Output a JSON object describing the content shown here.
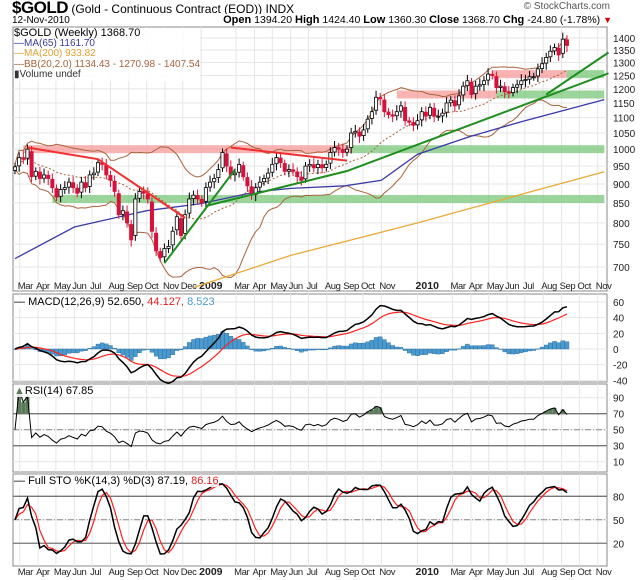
{
  "header": {
    "symbol": "$GOLD",
    "description": "(Gold - Continuous Contract (EOD))",
    "exchange": "INDX",
    "date": "12-Nov-2010",
    "brand": "© StockCharts.com",
    "open_label": "Open",
    "open": "1394.20",
    "high_label": "High",
    "high": "1424.40",
    "low_label": "Low",
    "low": "1360.30",
    "close_label": "Close",
    "close": "1368.70",
    "chg_label": "Chg",
    "chg": "-24.80 (-1.78%)"
  },
  "legend": {
    "price": "$GOLD (Weekly) 1368.70",
    "ma65": "MA(65) 1161.70",
    "ma200": "MA(200) 933.82",
    "bb": "BB(20,2.0) 1134.43 - 1270.98 - 1407.54",
    "volume": "Volume undef",
    "macd": "MACD(12,26,9) 52.650,",
    "macd_signal": "44.127,",
    "macd_hist": "8.523",
    "rsi": "RSI(14) 67.85",
    "sto": "Full STO %K(14,3) %D(3) 87.19,",
    "sto_d": "86.16"
  },
  "chart_data": {
    "type": "candlestick",
    "period": "weekly",
    "price_scale": "log",
    "grid": true,
    "colors": {
      "up": "#000000",
      "down": "#d8103a",
      "ma65": "#3a3aa8",
      "ma200": "#e8aa38",
      "bb": "#a8643c",
      "resistance": "#f03030",
      "support": "#1f8f1f",
      "macd": "#000000",
      "signal": "#ff2020",
      "histogram": "#4a9ad0",
      "rsi_fill": "#5a7a5a"
    },
    "closes": [
      948,
      975,
      970,
      1000,
      920,
      935,
      915,
      925,
      915,
      890,
      865,
      885,
      890,
      905,
      890,
      875,
      905,
      890,
      925,
      930,
      960,
      955,
      925,
      910,
      880,
      820,
      830,
      800,
      760,
      860,
      880,
      875,
      860,
      780,
      735,
      720,
      740,
      745,
      780,
      815,
      770,
      820,
      860,
      870,
      860,
      850,
      890,
      905,
      915,
      940,
      990,
      950,
      925,
      930,
      955,
      920,
      895,
      870,
      890,
      905,
      915,
      930,
      955,
      975,
      960,
      935,
      940,
      935,
      920,
      910,
      950,
      955,
      945,
      955,
      945,
      955,
      990,
      1005,
      1000,
      990,
      1000,
      1050,
      1055,
      1040,
      1060,
      1095,
      1120,
      1170,
      1165,
      1120,
      1110,
      1105,
      1120,
      1140,
      1090,
      1085,
      1075,
      1090,
      1120,
      1105,
      1135,
      1105,
      1105,
      1115,
      1150,
      1160,
      1140,
      1175,
      1210,
      1230,
      1180,
      1210,
      1215,
      1230,
      1255,
      1250,
      1205,
      1210,
      1190,
      1185,
      1205,
      1215,
      1230,
      1235,
      1245,
      1245,
      1275,
      1295,
      1320,
      1345,
      1360,
      1330,
      1395,
      1368.7
    ],
    "ma65": [
      [
        "2008-02-22",
        718
      ],
      [
        "2008-06-01",
        790
      ],
      [
        "2008-10-01",
        830
      ],
      [
        "2009-01-01",
        848
      ],
      [
        "2009-04-01",
        878
      ],
      [
        "2009-06-01",
        888
      ],
      [
        "2009-09-01",
        895
      ],
      [
        "2009-11-01",
        910
      ],
      [
        "2010-01-01",
        985
      ],
      [
        "2010-04-01",
        1040
      ],
      [
        "2010-07-01",
        1090
      ],
      [
        "2010-11-12",
        1161.7
      ]
    ],
    "ma200": [
      [
        "2008-12-20",
        658
      ],
      [
        "2009-06-01",
        725
      ],
      [
        "2010-01-01",
        800
      ],
      [
        "2010-06-01",
        862
      ],
      [
        "2010-11-12",
        933.82
      ]
    ],
    "price_ticks": [
      700,
      750,
      800,
      850,
      900,
      950,
      1000,
      1050,
      1100,
      1150,
      1200,
      1250,
      1300,
      1350,
      1400
    ],
    "x_ticks": [
      {
        "label": "Mar",
        "date": "2008-03-01"
      },
      {
        "label": "Apr",
        "date": "2008-04-01"
      },
      {
        "label": "May",
        "date": "2008-05-01"
      },
      {
        "label": "Jun",
        "date": "2008-06-01"
      },
      {
        "label": "Jul",
        "date": "2008-07-01"
      },
      {
        "label": "Aug",
        "date": "2008-08-01"
      },
      {
        "label": "Sep",
        "date": "2008-09-01"
      },
      {
        "label": "Oct",
        "date": "2008-10-01"
      },
      {
        "label": "Nov",
        "date": "2008-11-01"
      },
      {
        "label": "Dec",
        "date": "2008-12-01"
      },
      {
        "label": "2009",
        "date": "2009-01-01",
        "bold": true
      },
      {
        "label": "Mar",
        "date": "2009-03-01"
      },
      {
        "label": "Apr",
        "date": "2009-04-01"
      },
      {
        "label": "May",
        "date": "2009-05-01"
      },
      {
        "label": "Jun",
        "date": "2009-06-01"
      },
      {
        "label": "Jul",
        "date": "2009-07-01"
      },
      {
        "label": "Aug",
        "date": "2009-08-01"
      },
      {
        "label": "Sep",
        "date": "2009-09-01"
      },
      {
        "label": "Oct",
        "date": "2009-10-01"
      },
      {
        "label": "Nov",
        "date": "2009-11-01"
      },
      {
        "label": "2010",
        "date": "2010-01-01",
        "bold": true
      },
      {
        "label": "Mar",
        "date": "2010-03-01"
      },
      {
        "label": "Apr",
        "date": "2010-04-01"
      },
      {
        "label": "May",
        "date": "2010-05-01"
      },
      {
        "label": "Jun",
        "date": "2010-06-01"
      },
      {
        "label": "Jul",
        "date": "2010-07-01"
      },
      {
        "label": "Aug",
        "date": "2010-08-01"
      },
      {
        "label": "Sep",
        "date": "2010-09-01"
      },
      {
        "label": "Oct",
        "date": "2010-10-01"
      },
      {
        "label": "Nov",
        "date": "2010-11-01"
      }
    ],
    "bands": [
      {
        "kind": "resistance",
        "price": 1000,
        "from": "2008-03-07",
        "to": "2009-09-11"
      },
      {
        "kind": "support",
        "price": 1000,
        "from": "2009-09-11",
        "to": "2010-11-12"
      },
      {
        "kind": "support",
        "price": 860,
        "from": "2008-04-25",
        "to": "2010-11-12"
      },
      {
        "kind": "resistance",
        "price": 1180,
        "from": "2009-11-27",
        "to": "2010-05-14"
      },
      {
        "kind": "support",
        "price": 1180,
        "from": "2010-05-14",
        "to": "2010-11-12"
      },
      {
        "kind": "resistance",
        "price": 1255,
        "from": "2010-05-07",
        "to": "2010-09-10"
      },
      {
        "kind": "support",
        "price": 1255,
        "from": "2010-09-10",
        "to": "2010-11-12"
      }
    ],
    "trendlines": [
      {
        "kind": "resistance",
        "points": [
          [
            "2008-03-14",
            1005
          ],
          [
            "2008-07-11",
            970
          ],
          [
            "2008-12-05",
            812
          ]
        ]
      },
      {
        "kind": "resistance",
        "points": [
          [
            "2009-02-20",
            1005
          ],
          [
            "2009-09-04",
            966
          ]
        ]
      },
      {
        "kind": "support",
        "points": [
          [
            "2008-10-31",
            708
          ],
          [
            "2009-02-27",
            940
          ]
        ]
      },
      {
        "kind": "support",
        "points": [
          [
            "2009-01-09",
            842
          ],
          [
            "2009-09-04",
            936
          ],
          [
            "2010-11-19",
            1258
          ]
        ]
      },
      {
        "kind": "support",
        "points": [
          [
            "2010-08-06",
            1180
          ],
          [
            "2010-11-19",
            1340
          ]
        ]
      }
    ],
    "macd": {
      "ticks": [
        60,
        40,
        20,
        0,
        -20,
        -40
      ]
    },
    "rsi": {
      "ticks": [
        90,
        70,
        50,
        30,
        10
      ],
      "overbought": 70,
      "oversold": 30
    },
    "sto": {
      "ticks": [
        80,
        50,
        20
      ]
    }
  }
}
